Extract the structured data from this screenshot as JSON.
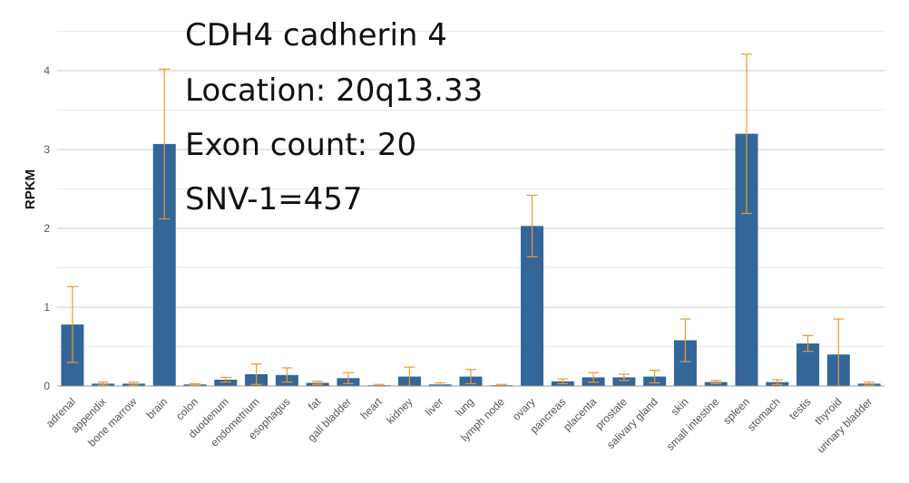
{
  "chart_data": {
    "type": "bar",
    "title": "",
    "xlabel": "",
    "ylabel": "RPKM",
    "ylim": [
      0,
      4.5
    ],
    "yticks": [
      0,
      1,
      2,
      3,
      4
    ],
    "grid": true,
    "bar_color": "#336699",
    "error_color": "#f0982a",
    "categories": [
      "adrenal",
      "appendix",
      "bone marrow",
      "brain",
      "colon",
      "duodenum",
      "endometrium",
      "esophagus",
      "fat",
      "gall bladder",
      "heart",
      "kidney",
      "liver",
      "lung",
      "lymph node",
      "ovary",
      "pancreas",
      "placenta",
      "prostate",
      "salivary gland",
      "skin",
      "small intestine",
      "spleen",
      "stomach",
      "testis",
      "thyroid",
      "urinary bladder"
    ],
    "values": [
      0.78,
      0.03,
      0.03,
      3.07,
      0.02,
      0.08,
      0.15,
      0.14,
      0.04,
      0.1,
      0.01,
      0.12,
      0.02,
      0.12,
      0.01,
      2.03,
      0.06,
      0.11,
      0.11,
      0.12,
      0.58,
      0.05,
      3.2,
      0.05,
      0.54,
      0.4,
      0.03
    ],
    "errors": [
      0.48,
      0.02,
      0.02,
      0.95,
      0.01,
      0.03,
      0.13,
      0.09,
      0.02,
      0.07,
      0.01,
      0.12,
      0.02,
      0.09,
      0.01,
      0.39,
      0.03,
      0.06,
      0.04,
      0.08,
      0.27,
      0.02,
      1.01,
      0.03,
      0.1,
      0.45,
      0.02
    ]
  },
  "annotations": {
    "gene": "CDH4 cadherin 4",
    "location": "Location: 20q13.33",
    "exon_count": "Exon count: 20",
    "snv": "SNV-1=457"
  }
}
